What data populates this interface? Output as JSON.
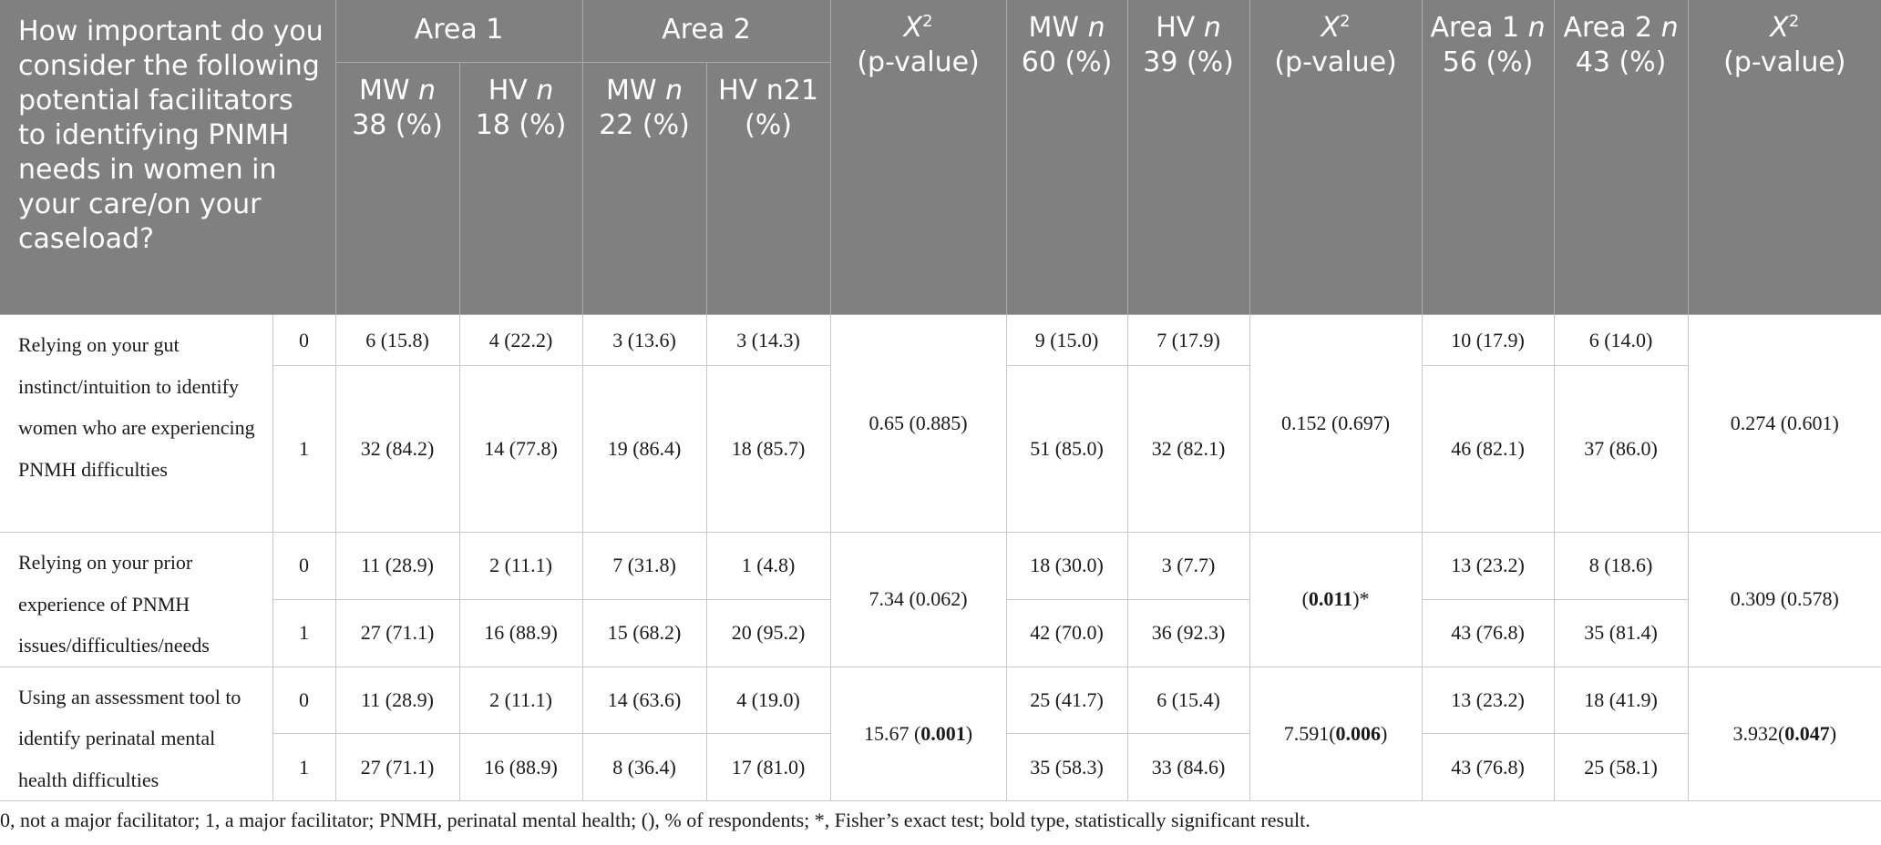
{
  "header": {
    "question": "How important do you consider the following potential facilitators to identifying PNMH needs in women in your care/on your caseload?",
    "area1": "Area 1",
    "area2": "Area 2",
    "chi_label": "X",
    "chi_sup": "2",
    "pvalue_label": "(p-value)",
    "a1_mw": "MW n 38 (%)",
    "a1_hv": "HV n 18 (%)",
    "a2_mw": "MW n 22 (%)",
    "a2_hv": "HV n21 (%)",
    "mw_total": "MW n 60 (%)",
    "hv_total": "HV n 39 (%)",
    "area1_total": "Area 1 n 56 (%)",
    "area2_total": "Area 2 n 43 (%)"
  },
  "rows": [
    {
      "label": "Relying on your gut instinct/intuition to identify women who are experiencing PNMH difficulties",
      "r0": {
        "code": "0",
        "a1_mw": "6 (15.8)",
        "a1_hv": "4 (22.2)",
        "a2_mw": "3 (13.6)",
        "a2_hv": "3 (14.3)",
        "mw": "9 (15.0)",
        "hv": "7 (17.9)",
        "area1": "10 (17.9)",
        "area2": "6 (14.0)"
      },
      "r1": {
        "code": "1",
        "a1_mw": "32 (84.2)",
        "a1_hv": "14 (77.8)",
        "a2_mw": "19 (86.4)",
        "a2_hv": "18 (85.7)",
        "mw": "51 (85.0)",
        "hv": "32 (82.1)",
        "area1": "46 (82.1)",
        "area2": "37 (86.0)"
      },
      "chi1": "0.65 (0.885)",
      "chi2": "0.152 (0.697)",
      "chi3": "0.274 (0.601)"
    },
    {
      "label": "Relying on your prior experience of PNMH issues/difficulties/needs",
      "r0": {
        "code": "0",
        "a1_mw": "11 (28.9)",
        "a1_hv": "2 (11.1)",
        "a2_mw": "7 (31.8)",
        "a2_hv": "1 (4.8)",
        "mw": "18 (30.0)",
        "hv": "3 (7.7)",
        "area1": "13 (23.2)",
        "area2": "8 (18.6)"
      },
      "r1": {
        "code": "1",
        "a1_mw": "27 (71.1)",
        "a1_hv": "16 (88.9)",
        "a2_mw": "15 (68.2)",
        "a2_hv": "20 (95.2)",
        "mw": "42 (70.0)",
        "hv": "36 (92.3)",
        "area1": "43 (76.8)",
        "area2": "35 (81.4)"
      },
      "chi1": "7.34 (0.062)",
      "chi2_bold": "0.011",
      "chi2_suffix": "*",
      "chi3": "0.309 (0.578)"
    },
    {
      "label": "Using an assessment tool to identify perinatal mental health difficulties",
      "r0": {
        "code": "0",
        "a1_mw": "11 (28.9)",
        "a1_hv": "2 (11.1)",
        "a2_mw": "14 (63.6)",
        "a2_hv": "4 (19.0)",
        "mw": "25 (41.7)",
        "hv": "6 (15.4)",
        "area1": "13 (23.2)",
        "area2": "18 (41.9)"
      },
      "r1": {
        "code": "1",
        "a1_mw": "27 (71.1)",
        "a1_hv": "16 (88.9)",
        "a2_mw": "8 (36.4)",
        "a2_hv": "17 (81.0)",
        "mw": "35 (58.3)",
        "hv": "33 (84.6)",
        "area1": "43 (76.8)",
        "area2": "25 (58.1)"
      },
      "chi1_pre": "15.67",
      "chi1_bold": "0.001",
      "chi2_pre": "7.591",
      "chi2_bold": "0.006",
      "chi3_pre": "3.932",
      "chi3_bold": "0.047"
    }
  ],
  "footnote": "0, not a major facilitator; 1, a major facilitator; PNMH, perinatal mental health; (), % of respondents; *, Fisher’s exact test; bold type, statistically significant result."
}
